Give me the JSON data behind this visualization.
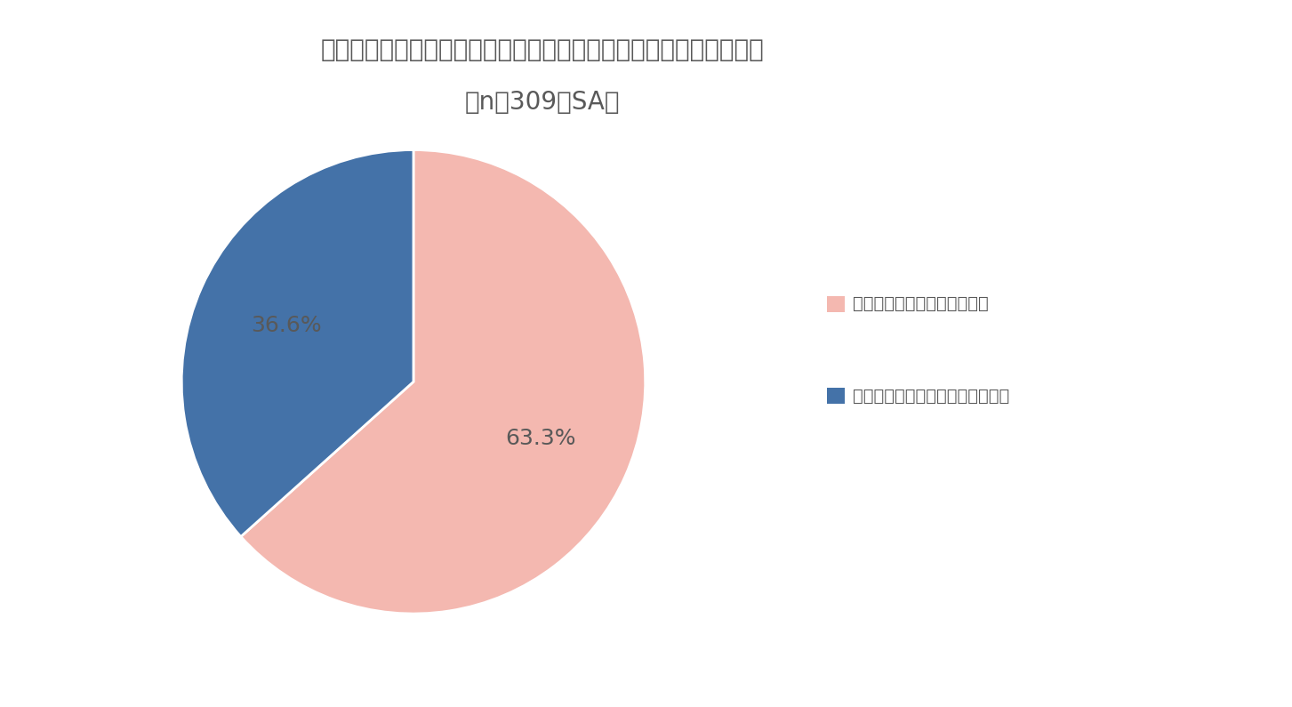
{
  "title_line1": "ご自身が経営する会社をどなたかに事業承継させたいと思いますか",
  "title_line2": "（n＝309、SA）",
  "slices": [
    63.3,
    36.6
  ],
  "labels": [
    "どなたかに事業承継させたい",
    "どなたにも事業承継させたくない"
  ],
  "colors": [
    "#F4B8B0",
    "#4472A8"
  ],
  "text_labels": [
    "63.3%",
    "36.6%"
  ],
  "background_color": "#ffffff",
  "title_fontsize": 20,
  "legend_fontsize": 14,
  "pct_fontsize": 18,
  "startangle": 90,
  "title_color": "#595959",
  "legend_text_color": "#595959",
  "pct_text_color": "#595959"
}
